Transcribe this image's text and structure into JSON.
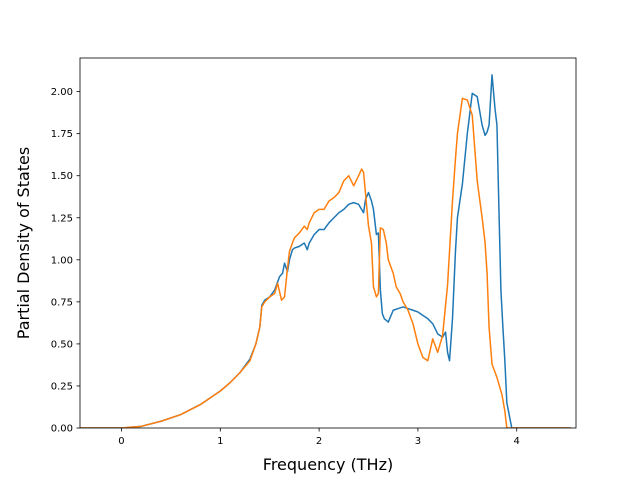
{
  "chart_data": {
    "type": "line",
    "title": "",
    "xlabel": "Frequency (THz)",
    "ylabel": "Partial Density of States",
    "xlim": [
      -0.42,
      4.6
    ],
    "ylim": [
      0.0,
      2.2
    ],
    "grid": false,
    "legend": "none",
    "xticks": [
      0,
      1,
      2,
      3,
      4
    ],
    "xtick_labels": [
      "0",
      "1",
      "2",
      "3",
      "4"
    ],
    "yticks": [
      0.0,
      0.25,
      0.5,
      0.75,
      1.0,
      1.25,
      1.5,
      1.75,
      2.0
    ],
    "ytick_labels": [
      "0.00",
      "0.25",
      "0.50",
      "0.75",
      "1.00",
      "1.25",
      "1.50",
      "1.75",
      "2.00"
    ],
    "series": [
      {
        "color": "#1f77b4",
        "x": [
          -0.42,
          0.0,
          0.2,
          0.4,
          0.6,
          0.8,
          1.0,
          1.1,
          1.2,
          1.3,
          1.36,
          1.4,
          1.42,
          1.45,
          1.5,
          1.55,
          1.6,
          1.63,
          1.65,
          1.68,
          1.7,
          1.73,
          1.75,
          1.8,
          1.85,
          1.88,
          1.9,
          1.95,
          2.0,
          2.05,
          2.1,
          2.15,
          2.2,
          2.25,
          2.3,
          2.35,
          2.4,
          2.45,
          2.47,
          2.5,
          2.53,
          2.55,
          2.58,
          2.6,
          2.62,
          2.64,
          2.66,
          2.7,
          2.75,
          2.8,
          2.85,
          2.9,
          2.95,
          3.0,
          3.05,
          3.1,
          3.15,
          3.2,
          3.25,
          3.28,
          3.3,
          3.32,
          3.35,
          3.38,
          3.4,
          3.45,
          3.5,
          3.55,
          3.6,
          3.65,
          3.68,
          3.7,
          3.72,
          3.75,
          3.78,
          3.8,
          3.82,
          3.84,
          3.86,
          3.88,
          3.9,
          3.95,
          4.0,
          4.05,
          4.1,
          4.12,
          4.2,
          4.3,
          4.55
        ],
        "y": [
          0.0,
          0.0,
          0.01,
          0.04,
          0.08,
          0.14,
          0.22,
          0.27,
          0.33,
          0.41,
          0.5,
          0.6,
          0.73,
          0.76,
          0.78,
          0.82,
          0.9,
          0.92,
          0.98,
          0.93,
          1.0,
          1.06,
          1.07,
          1.08,
          1.1,
          1.06,
          1.1,
          1.15,
          1.18,
          1.18,
          1.22,
          1.25,
          1.28,
          1.3,
          1.33,
          1.34,
          1.33,
          1.28,
          1.36,
          1.4,
          1.35,
          1.3,
          1.15,
          1.16,
          0.82,
          0.68,
          0.65,
          0.63,
          0.7,
          0.71,
          0.72,
          0.71,
          0.7,
          0.69,
          0.67,
          0.65,
          0.62,
          0.56,
          0.54,
          0.57,
          0.45,
          0.4,
          0.65,
          1.05,
          1.25,
          1.45,
          1.75,
          1.99,
          1.97,
          1.8,
          1.74,
          1.76,
          1.8,
          2.1,
          1.9,
          1.8,
          1.3,
          0.82,
          0.6,
          0.4,
          0.15,
          0.0,
          0.0,
          0.0,
          0.0,
          0.0,
          0.0,
          0.0,
          0.0
        ]
      },
      {
        "color": "#ff7f0e",
        "x": [
          -0.42,
          0.0,
          0.2,
          0.4,
          0.6,
          0.8,
          1.0,
          1.1,
          1.2,
          1.3,
          1.36,
          1.4,
          1.42,
          1.45,
          1.5,
          1.55,
          1.58,
          1.62,
          1.65,
          1.68,
          1.7,
          1.73,
          1.75,
          1.8,
          1.85,
          1.88,
          1.9,
          1.95,
          2.0,
          2.05,
          2.1,
          2.15,
          2.2,
          2.25,
          2.3,
          2.35,
          2.4,
          2.43,
          2.45,
          2.5,
          2.53,
          2.55,
          2.58,
          2.6,
          2.62,
          2.65,
          2.68,
          2.7,
          2.75,
          2.78,
          2.82,
          2.85,
          2.9,
          2.95,
          3.0,
          3.05,
          3.1,
          3.15,
          3.2,
          3.25,
          3.3,
          3.35,
          3.38,
          3.4,
          3.45,
          3.5,
          3.55,
          3.6,
          3.65,
          3.68,
          3.7,
          3.72,
          3.75,
          3.8,
          3.85,
          3.88,
          3.9,
          3.95,
          4.0,
          4.05,
          4.1,
          4.12,
          4.2,
          4.3,
          4.55
        ],
        "y": [
          0.0,
          0.0,
          0.01,
          0.04,
          0.08,
          0.14,
          0.22,
          0.27,
          0.33,
          0.4,
          0.5,
          0.6,
          0.72,
          0.75,
          0.78,
          0.8,
          0.86,
          0.76,
          0.78,
          0.95,
          1.05,
          1.1,
          1.13,
          1.16,
          1.2,
          1.18,
          1.22,
          1.28,
          1.3,
          1.3,
          1.35,
          1.37,
          1.4,
          1.47,
          1.5,
          1.44,
          1.5,
          1.54,
          1.52,
          1.2,
          1.1,
          0.84,
          0.78,
          0.8,
          1.19,
          1.18,
          1.1,
          1.0,
          0.92,
          0.84,
          0.8,
          0.75,
          0.7,
          0.62,
          0.5,
          0.42,
          0.4,
          0.53,
          0.45,
          0.55,
          0.85,
          1.35,
          1.6,
          1.75,
          1.96,
          1.95,
          1.86,
          1.47,
          1.25,
          1.1,
          0.92,
          0.6,
          0.38,
          0.3,
          0.2,
          0.1,
          0.0,
          0.0,
          0.0,
          0.0,
          0.0,
          0.0,
          0.0,
          0.0,
          0.0
        ]
      }
    ]
  }
}
